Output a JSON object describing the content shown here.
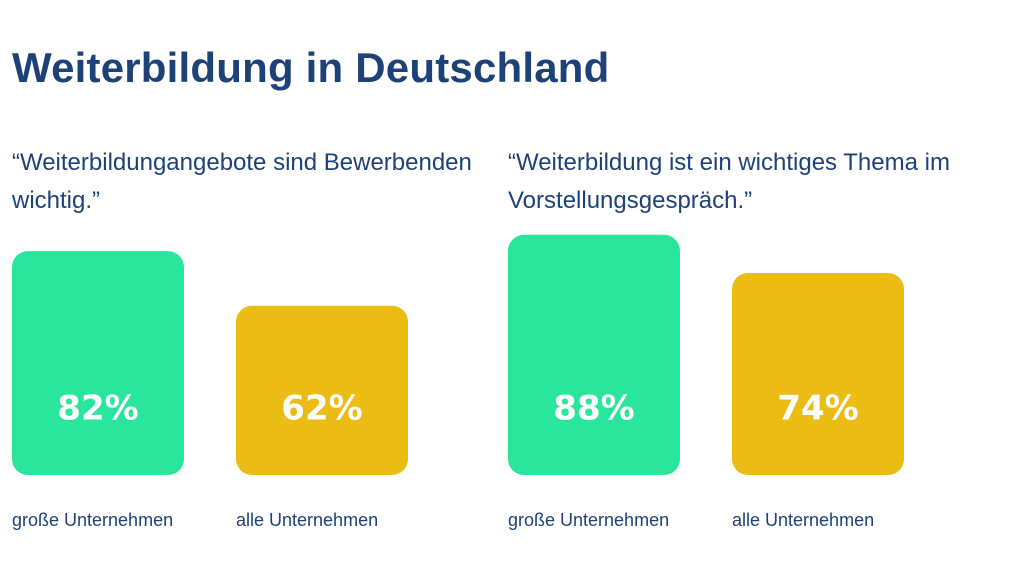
{
  "title": "Weiterbildung in Deutschland",
  "colors": {
    "heading": "#1d4278",
    "grosse_unternehmen": "#2ae59c",
    "alle_unternehmen": "#ebbc14",
    "value_text": "#ffffff"
  },
  "chart_data": [
    {
      "type": "bar",
      "title": "“Weiterbildungangebote sind Bewerbenden wichtig.”",
      "categories": [
        "große Unternehmen",
        "alle Unternehmen"
      ],
      "values": [
        82,
        62
      ],
      "value_labels": [
        "82%",
        "62%"
      ],
      "unit": "%",
      "ylim": [
        0,
        100
      ],
      "grid": false
    },
    {
      "type": "bar",
      "title": "“Weiterbildung ist ein wichtiges Thema im Vorstellungsgespräch.”",
      "categories": [
        "große Unternehmen",
        "alle Unternehmen"
      ],
      "values": [
        88,
        74
      ],
      "value_labels": [
        "88%",
        "74%"
      ],
      "unit": "%",
      "ylim": [
        0,
        100
      ],
      "grid": false
    }
  ]
}
